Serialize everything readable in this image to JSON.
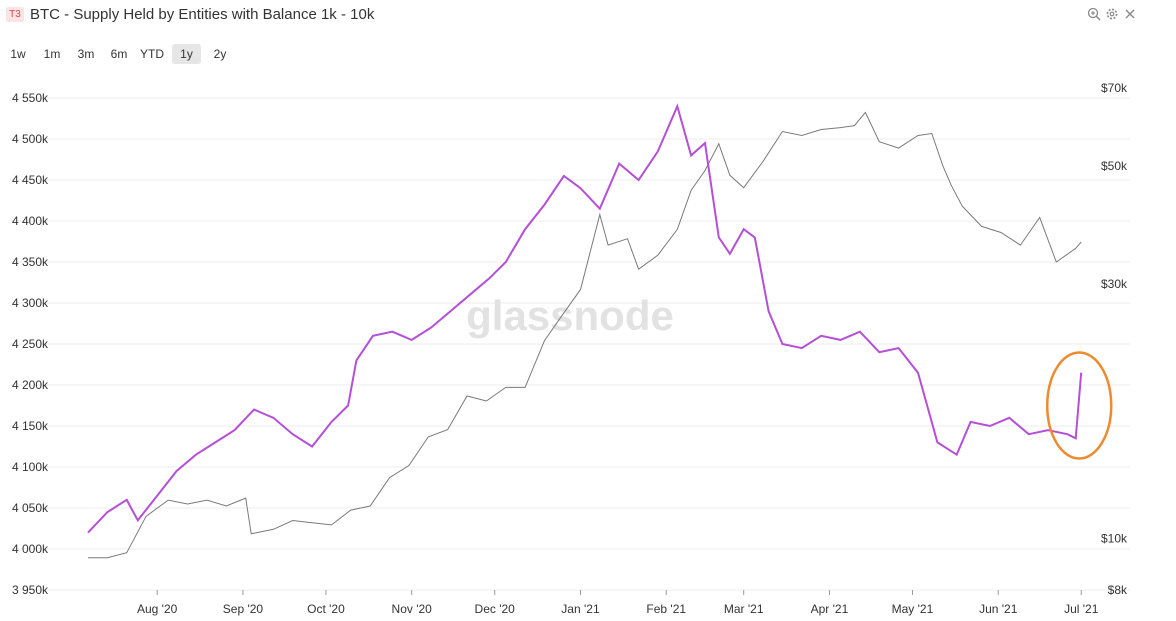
{
  "header": {
    "tag": "T3",
    "title": "BTC - Supply Held by Entities with Balance 1k - 10k",
    "icons": [
      "zoom-icon",
      "settings-icon",
      "close-icon"
    ]
  },
  "range_buttons": [
    {
      "label": "1w",
      "active": false
    },
    {
      "label": "1m",
      "active": false
    },
    {
      "label": "3m",
      "active": false
    },
    {
      "label": "6m",
      "active": false
    },
    {
      "label": "YTD",
      "active": false
    },
    {
      "label": "1y",
      "active": true
    },
    {
      "label": "2y",
      "active": false
    }
  ],
  "watermark": "glassnode",
  "colors": {
    "supply": "#b44fd6",
    "price": "#7a7a7a",
    "highlight": "#ee8a2f",
    "grid": "#ececec"
  },
  "chart_data": {
    "type": "line",
    "title": "BTC - Supply Held by Entities with Balance 1k - 10k",
    "x_tick_labels": [
      "Aug '20",
      "Sep '20",
      "Oct '20",
      "Nov '20",
      "Dec '20",
      "Jan '21",
      "Feb '21",
      "Mar '21",
      "Apr '21",
      "May '21",
      "Jun '21",
      "Jul '21"
    ],
    "x_ticks": [
      "2020-08-01",
      "2020-09-01",
      "2020-10-01",
      "2020-11-01",
      "2020-12-01",
      "2021-01-01",
      "2021-02-01",
      "2021-03-01",
      "2021-04-01",
      "2021-05-01",
      "2021-06-01",
      "2021-07-01"
    ],
    "xlim": [
      "2020-07-07",
      "2021-07-02"
    ],
    "y_left": {
      "ylim": [
        3950000,
        4550000
      ],
      "tick_labels": [
        "3 950k",
        "4 000k",
        "4 050k",
        "4 100k",
        "4 150k",
        "4 200k",
        "4 250k",
        "4 300k",
        "4 350k",
        "4 400k",
        "4 450k",
        "4 500k",
        "4 550k"
      ],
      "ticks": [
        3950000,
        4000000,
        4050000,
        4100000,
        4150000,
        4200000,
        4250000,
        4300000,
        4350000,
        4400000,
        4450000,
        4500000,
        4550000
      ]
    },
    "y_right": {
      "scale": "log",
      "ylim": [
        8000,
        70000
      ],
      "tick_labels": [
        "$8k",
        "$10k",
        "$30k",
        "$50k",
        "$70k"
      ],
      "ticks": [
        8000,
        10000,
        30000,
        50000,
        70000
      ]
    },
    "grid": true,
    "series": [
      {
        "axis": "left",
        "x": [
          "2020-07-07",
          "2020-07-14",
          "2020-07-21",
          "2020-07-25",
          "2020-08-01",
          "2020-08-08",
          "2020-08-15",
          "2020-08-22",
          "2020-08-29",
          "2020-09-05",
          "2020-09-12",
          "2020-09-19",
          "2020-09-26",
          "2020-10-03",
          "2020-10-09",
          "2020-10-12",
          "2020-10-18",
          "2020-10-25",
          "2020-11-01",
          "2020-11-08",
          "2020-11-15",
          "2020-11-22",
          "2020-11-29",
          "2020-12-05",
          "2020-12-12",
          "2020-12-19",
          "2020-12-26",
          "2021-01-01",
          "2021-01-08",
          "2021-01-15",
          "2021-01-22",
          "2021-01-29",
          "2021-02-05",
          "2021-02-10",
          "2021-02-15",
          "2021-02-20",
          "2021-02-24",
          "2021-03-01",
          "2021-03-05",
          "2021-03-10",
          "2021-03-15",
          "2021-03-22",
          "2021-03-29",
          "2021-04-05",
          "2021-04-12",
          "2021-04-19",
          "2021-04-26",
          "2021-05-03",
          "2021-05-10",
          "2021-05-17",
          "2021-05-22",
          "2021-05-29",
          "2021-06-05",
          "2021-06-12",
          "2021-06-19",
          "2021-06-26",
          "2021-06-29",
          "2021-07-01"
        ],
        "values": [
          4020000,
          4045000,
          4060000,
          4035000,
          4065000,
          4095000,
          4115000,
          4130000,
          4145000,
          4170000,
          4160000,
          4140000,
          4125000,
          4155000,
          4175000,
          4230000,
          4260000,
          4265000,
          4255000,
          4270000,
          4290000,
          4310000,
          4330000,
          4350000,
          4390000,
          4420000,
          4455000,
          4440000,
          4415000,
          4470000,
          4450000,
          4485000,
          4540000,
          4480000,
          4495000,
          4380000,
          4360000,
          4390000,
          4380000,
          4290000,
          4250000,
          4245000,
          4260000,
          4255000,
          4265000,
          4240000,
          4245000,
          4215000,
          4130000,
          4115000,
          4155000,
          4150000,
          4160000,
          4140000,
          4145000,
          4140000,
          4135000,
          4215000
        ]
      },
      {
        "axis": "right",
        "x": [
          "2020-07-07",
          "2020-07-14",
          "2020-07-21",
          "2020-07-28",
          "2020-08-05",
          "2020-08-12",
          "2020-08-19",
          "2020-08-26",
          "2020-09-02",
          "2020-09-04",
          "2020-09-12",
          "2020-09-19",
          "2020-09-26",
          "2020-10-03",
          "2020-10-10",
          "2020-10-17",
          "2020-10-24",
          "2020-10-31",
          "2020-11-07",
          "2020-11-14",
          "2020-11-21",
          "2020-11-28",
          "2020-12-05",
          "2020-12-12",
          "2020-12-19",
          "2020-12-26",
          "2021-01-01",
          "2021-01-08",
          "2021-01-11",
          "2021-01-18",
          "2021-01-22",
          "2021-01-29",
          "2021-02-05",
          "2021-02-10",
          "2021-02-15",
          "2021-02-20",
          "2021-02-24",
          "2021-03-01",
          "2021-03-08",
          "2021-03-15",
          "2021-03-22",
          "2021-03-29",
          "2021-04-05",
          "2021-04-10",
          "2021-04-14",
          "2021-04-19",
          "2021-04-26",
          "2021-05-03",
          "2021-05-08",
          "2021-05-12",
          "2021-05-15",
          "2021-05-19",
          "2021-05-26",
          "2021-06-02",
          "2021-06-09",
          "2021-06-16",
          "2021-06-22",
          "2021-06-29",
          "2021-07-01"
        ],
        "values": [
          9200,
          9200,
          9400,
          11000,
          11800,
          11600,
          11800,
          11500,
          11900,
          10200,
          10400,
          10800,
          10700,
          10600,
          11300,
          11500,
          13000,
          13700,
          15500,
          16000,
          18500,
          18100,
          19200,
          19200,
          23500,
          26500,
          29300,
          40500,
          35500,
          36500,
          32000,
          34000,
          38000,
          45000,
          49000,
          55000,
          48000,
          45500,
          51000,
          58000,
          57000,
          58500,
          59000,
          59500,
          63000,
          55500,
          54000,
          57000,
          57500,
          50000,
          46000,
          42000,
          38500,
          37500,
          35500,
          40000,
          33000,
          35000,
          36000
        ]
      }
    ],
    "annotations": [
      {
        "type": "ellipse",
        "around": "last-spike",
        "date": "2021-07-01"
      }
    ]
  }
}
